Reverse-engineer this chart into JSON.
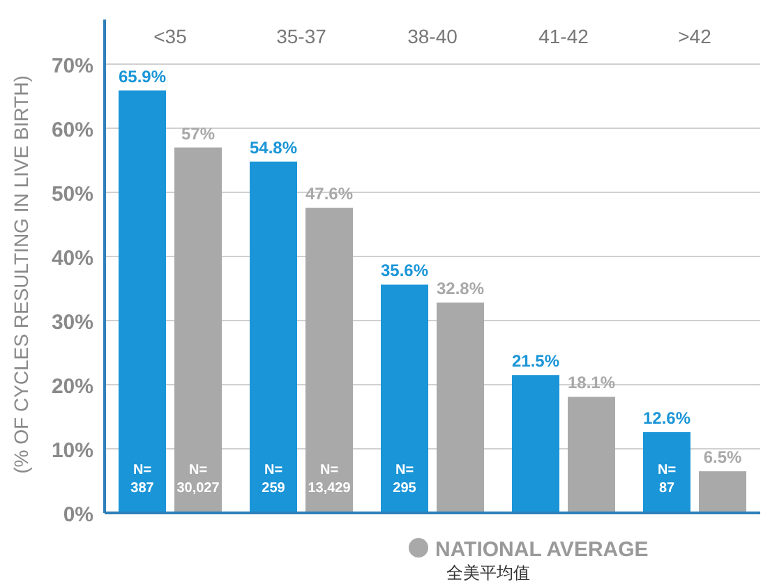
{
  "chart_data": {
    "type": "bar",
    "ylabel": "(% OF CYCLES RESULTING IN LIVE BIRTH)",
    "categories": [
      "<35",
      "35-37",
      "38-40",
      "41-42",
      ">42"
    ],
    "series": [
      {
        "color": "#1a95d8",
        "values": [
          65.9,
          54.8,
          35.6,
          21.5,
          12.6
        ],
        "value_labels": [
          "65.9%",
          "54.8%",
          "35.6%",
          "21.5%",
          "12.6%"
        ]
      },
      {
        "name": "NATIONAL AVERAGE\n全美平均值",
        "color": "#a9a9a9",
        "values": [
          57,
          47.6,
          32.8,
          18.1,
          6.5
        ],
        "value_labels": [
          "57%",
          "47.6%",
          "32.8%",
          "18.1%",
          "6.5%"
        ]
      }
    ],
    "ylim": [
      0,
      70
    ],
    "yticks": [
      {
        "value": 0,
        "label": "0%"
      },
      {
        "value": 10,
        "label": "10%"
      },
      {
        "value": 20,
        "label": "20%"
      },
      {
        "value": 30,
        "label": "30%"
      },
      {
        "value": 40,
        "label": "40%"
      },
      {
        "value": 50,
        "label": "50%"
      },
      {
        "value": 60,
        "label": "60%"
      },
      {
        "value": 70,
        "label": "70%"
      }
    ],
    "grid": "y",
    "legend": "bottom",
    "annotations": [
      {
        "text": "N=\n387",
        "x": "<35",
        "y": 3
      },
      {
        "text": "N=\n30,027",
        "x": "<35",
        "y": 3
      },
      {
        "text": "N=\n259",
        "x": "35-37",
        "y": 3
      },
      {
        "text": "N=\n13,429",
        "x": "35-37",
        "y": 3
      },
      {
        "text": "N=\n295",
        "x": "38-40",
        "y": 3
      },
      {
        "text": "N=\n87",
        "x": ">42",
        "y": 3
      }
    ]
  }
}
